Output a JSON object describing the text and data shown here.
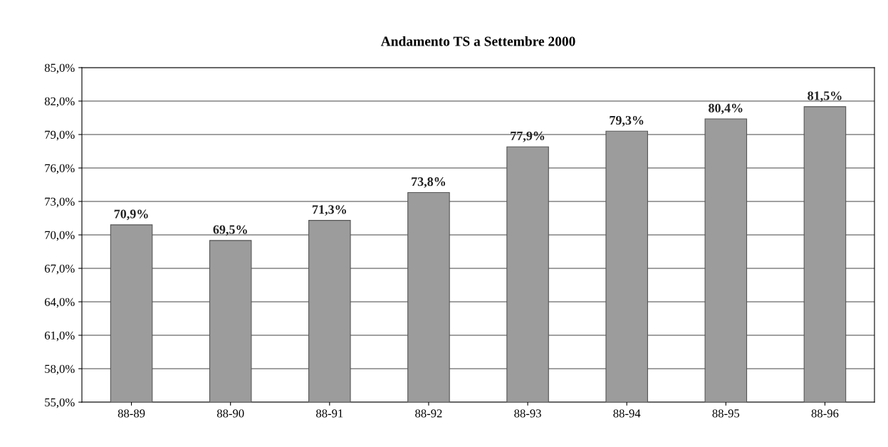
{
  "chart_data": {
    "type": "bar",
    "title": "Andamento TS a Settembre 2000",
    "categories": [
      "88-89",
      "88-90",
      "88-91",
      "88-92",
      "88-93",
      "88-94",
      "88-95",
      "88-96"
    ],
    "values": [
      70.9,
      69.5,
      71.3,
      73.8,
      77.9,
      79.3,
      80.4,
      81.5
    ],
    "value_labels": [
      "70,9%",
      "69,5%",
      "71,3%",
      "73,8%",
      "77,9%",
      "79,3%",
      "80,4%",
      "81,5%"
    ],
    "color": "#9c9c9c",
    "ylim": [
      55,
      85
    ],
    "yticks": [
      {
        "value": 55,
        "label": "55,0%"
      },
      {
        "value": 58,
        "label": "58,0%"
      },
      {
        "value": 61,
        "label": "61,0%"
      },
      {
        "value": 64,
        "label": "64,0%"
      },
      {
        "value": 67,
        "label": "67,0%"
      },
      {
        "value": 70,
        "label": "70,0%"
      },
      {
        "value": 73,
        "label": "73,0%"
      },
      {
        "value": 76,
        "label": "76,0%"
      },
      {
        "value": 79,
        "label": "79,0%"
      },
      {
        "value": 82,
        "label": "82,0%"
      },
      {
        "value": 85,
        "label": "85,0%"
      }
    ],
    "grid": "y",
    "legend": false
  }
}
